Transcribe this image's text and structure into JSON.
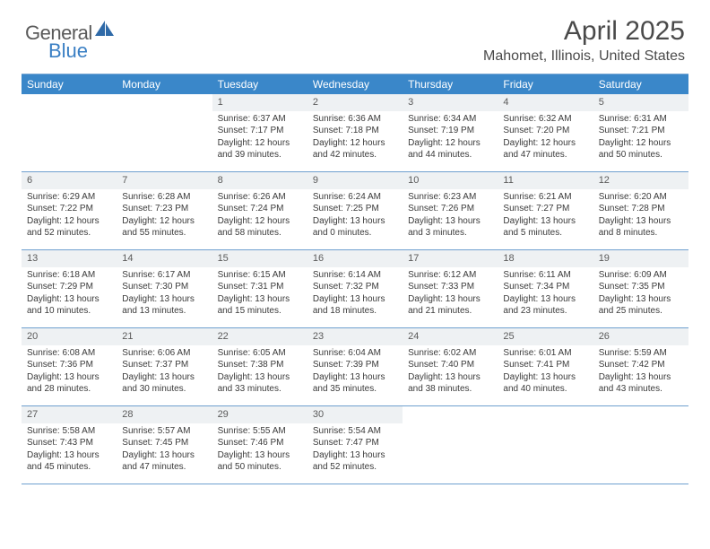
{
  "brand": {
    "part1": "General",
    "part2": "Blue"
  },
  "title": "April 2025",
  "location": "Mahomet, Illinois, United States",
  "colors": {
    "header_bg": "#3a87c9",
    "row_border": "#6fa0cf",
    "daynum_bg": "#eef1f3",
    "text": "#3a3a3a",
    "logo_gray": "#5a5a5a",
    "logo_blue": "#3a7fc4"
  },
  "weekdays": [
    "Sunday",
    "Monday",
    "Tuesday",
    "Wednesday",
    "Thursday",
    "Friday",
    "Saturday"
  ],
  "weeks": [
    [
      {
        "n": "",
        "sr": "",
        "ss": "",
        "dl": ""
      },
      {
        "n": "",
        "sr": "",
        "ss": "",
        "dl": ""
      },
      {
        "n": "1",
        "sr": "Sunrise: 6:37 AM",
        "ss": "Sunset: 7:17 PM",
        "dl": "Daylight: 12 hours and 39 minutes."
      },
      {
        "n": "2",
        "sr": "Sunrise: 6:36 AM",
        "ss": "Sunset: 7:18 PM",
        "dl": "Daylight: 12 hours and 42 minutes."
      },
      {
        "n": "3",
        "sr": "Sunrise: 6:34 AM",
        "ss": "Sunset: 7:19 PM",
        "dl": "Daylight: 12 hours and 44 minutes."
      },
      {
        "n": "4",
        "sr": "Sunrise: 6:32 AM",
        "ss": "Sunset: 7:20 PM",
        "dl": "Daylight: 12 hours and 47 minutes."
      },
      {
        "n": "5",
        "sr": "Sunrise: 6:31 AM",
        "ss": "Sunset: 7:21 PM",
        "dl": "Daylight: 12 hours and 50 minutes."
      }
    ],
    [
      {
        "n": "6",
        "sr": "Sunrise: 6:29 AM",
        "ss": "Sunset: 7:22 PM",
        "dl": "Daylight: 12 hours and 52 minutes."
      },
      {
        "n": "7",
        "sr": "Sunrise: 6:28 AM",
        "ss": "Sunset: 7:23 PM",
        "dl": "Daylight: 12 hours and 55 minutes."
      },
      {
        "n": "8",
        "sr": "Sunrise: 6:26 AM",
        "ss": "Sunset: 7:24 PM",
        "dl": "Daylight: 12 hours and 58 minutes."
      },
      {
        "n": "9",
        "sr": "Sunrise: 6:24 AM",
        "ss": "Sunset: 7:25 PM",
        "dl": "Daylight: 13 hours and 0 minutes."
      },
      {
        "n": "10",
        "sr": "Sunrise: 6:23 AM",
        "ss": "Sunset: 7:26 PM",
        "dl": "Daylight: 13 hours and 3 minutes."
      },
      {
        "n": "11",
        "sr": "Sunrise: 6:21 AM",
        "ss": "Sunset: 7:27 PM",
        "dl": "Daylight: 13 hours and 5 minutes."
      },
      {
        "n": "12",
        "sr": "Sunrise: 6:20 AM",
        "ss": "Sunset: 7:28 PM",
        "dl": "Daylight: 13 hours and 8 minutes."
      }
    ],
    [
      {
        "n": "13",
        "sr": "Sunrise: 6:18 AM",
        "ss": "Sunset: 7:29 PM",
        "dl": "Daylight: 13 hours and 10 minutes."
      },
      {
        "n": "14",
        "sr": "Sunrise: 6:17 AM",
        "ss": "Sunset: 7:30 PM",
        "dl": "Daylight: 13 hours and 13 minutes."
      },
      {
        "n": "15",
        "sr": "Sunrise: 6:15 AM",
        "ss": "Sunset: 7:31 PM",
        "dl": "Daylight: 13 hours and 15 minutes."
      },
      {
        "n": "16",
        "sr": "Sunrise: 6:14 AM",
        "ss": "Sunset: 7:32 PM",
        "dl": "Daylight: 13 hours and 18 minutes."
      },
      {
        "n": "17",
        "sr": "Sunrise: 6:12 AM",
        "ss": "Sunset: 7:33 PM",
        "dl": "Daylight: 13 hours and 21 minutes."
      },
      {
        "n": "18",
        "sr": "Sunrise: 6:11 AM",
        "ss": "Sunset: 7:34 PM",
        "dl": "Daylight: 13 hours and 23 minutes."
      },
      {
        "n": "19",
        "sr": "Sunrise: 6:09 AM",
        "ss": "Sunset: 7:35 PM",
        "dl": "Daylight: 13 hours and 25 minutes."
      }
    ],
    [
      {
        "n": "20",
        "sr": "Sunrise: 6:08 AM",
        "ss": "Sunset: 7:36 PM",
        "dl": "Daylight: 13 hours and 28 minutes."
      },
      {
        "n": "21",
        "sr": "Sunrise: 6:06 AM",
        "ss": "Sunset: 7:37 PM",
        "dl": "Daylight: 13 hours and 30 minutes."
      },
      {
        "n": "22",
        "sr": "Sunrise: 6:05 AM",
        "ss": "Sunset: 7:38 PM",
        "dl": "Daylight: 13 hours and 33 minutes."
      },
      {
        "n": "23",
        "sr": "Sunrise: 6:04 AM",
        "ss": "Sunset: 7:39 PM",
        "dl": "Daylight: 13 hours and 35 minutes."
      },
      {
        "n": "24",
        "sr": "Sunrise: 6:02 AM",
        "ss": "Sunset: 7:40 PM",
        "dl": "Daylight: 13 hours and 38 minutes."
      },
      {
        "n": "25",
        "sr": "Sunrise: 6:01 AM",
        "ss": "Sunset: 7:41 PM",
        "dl": "Daylight: 13 hours and 40 minutes."
      },
      {
        "n": "26",
        "sr": "Sunrise: 5:59 AM",
        "ss": "Sunset: 7:42 PM",
        "dl": "Daylight: 13 hours and 43 minutes."
      }
    ],
    [
      {
        "n": "27",
        "sr": "Sunrise: 5:58 AM",
        "ss": "Sunset: 7:43 PM",
        "dl": "Daylight: 13 hours and 45 minutes."
      },
      {
        "n": "28",
        "sr": "Sunrise: 5:57 AM",
        "ss": "Sunset: 7:45 PM",
        "dl": "Daylight: 13 hours and 47 minutes."
      },
      {
        "n": "29",
        "sr": "Sunrise: 5:55 AM",
        "ss": "Sunset: 7:46 PM",
        "dl": "Daylight: 13 hours and 50 minutes."
      },
      {
        "n": "30",
        "sr": "Sunrise: 5:54 AM",
        "ss": "Sunset: 7:47 PM",
        "dl": "Daylight: 13 hours and 52 minutes."
      },
      {
        "n": "",
        "sr": "",
        "ss": "",
        "dl": ""
      },
      {
        "n": "",
        "sr": "",
        "ss": "",
        "dl": ""
      },
      {
        "n": "",
        "sr": "",
        "ss": "",
        "dl": ""
      }
    ]
  ]
}
